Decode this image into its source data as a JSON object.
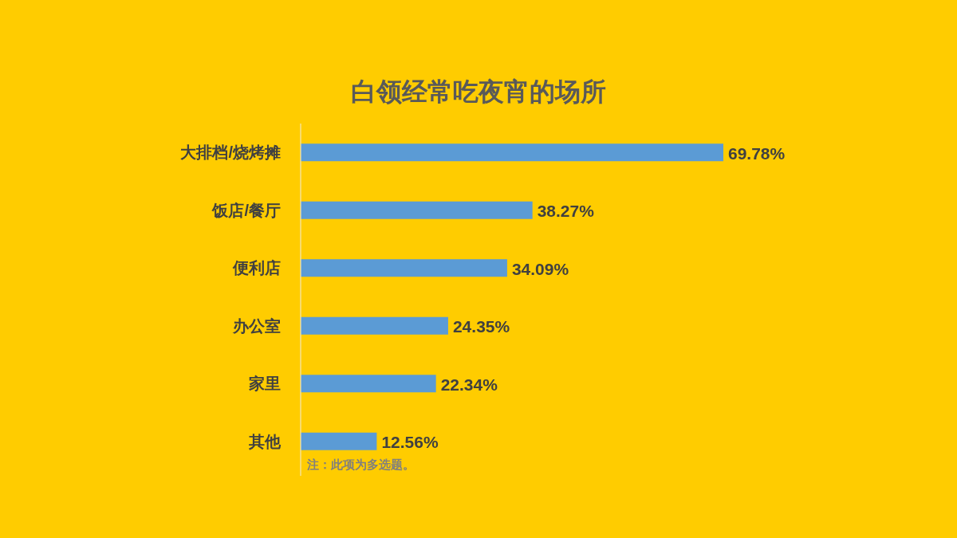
{
  "chart_data": {
    "type": "bar",
    "orientation": "horizontal",
    "title": "白领经常吃夜宵的场所",
    "categories": [
      "大排档/烧烤摊",
      "饭店/餐厅",
      "便利店",
      "办公室",
      "家里",
      "其他"
    ],
    "values": [
      69.78,
      38.27,
      34.09,
      24.35,
      22.34,
      12.56
    ],
    "value_labels": [
      "69.78%",
      "38.27%",
      "34.09%",
      "24.35%",
      "22.34%",
      "12.56%"
    ],
    "color": "#5b9bd5",
    "annotations": [
      "注：此项为多选题。"
    ]
  }
}
